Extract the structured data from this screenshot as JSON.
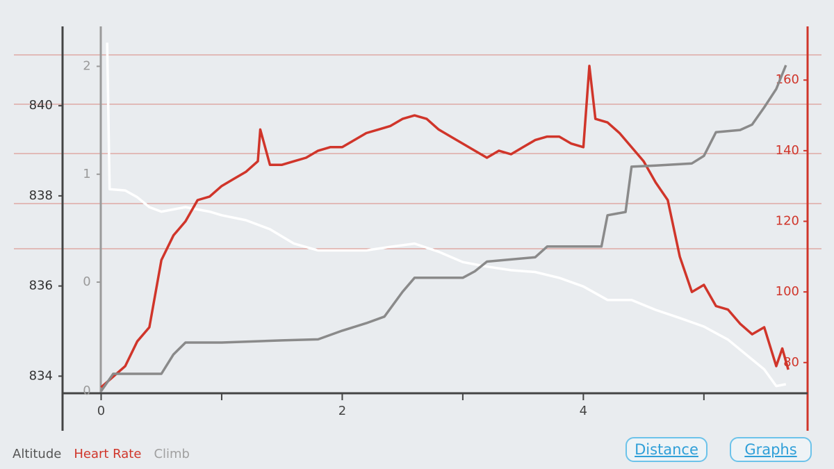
{
  "chart_data": {
    "type": "line",
    "xlim": [
      -0.32,
      5.86
    ],
    "xticks": [
      0,
      2,
      4
    ],
    "x_minor_ticks": [
      1,
      3,
      5
    ],
    "ylim": [
      833.62,
      841.76
    ],
    "yticks": [
      834,
      836,
      838,
      840
    ],
    "y2lim": [
      71.3,
      175.2
    ],
    "y2ticks": [
      80,
      100,
      120,
      140,
      160
    ],
    "y3lim": [
      -1.03,
      2.37
    ],
    "y3ticks": [
      0,
      1,
      2
    ],
    "y3_origin_label": "0",
    "series": [
      {
        "name": "Altitude",
        "color": "#ffffff",
        "legend_color": "#555555",
        "axis": "y",
        "x": [
          0.05,
          0.07,
          0.2,
          0.3,
          0.4,
          0.5,
          0.7,
          0.9,
          1.0,
          1.2,
          1.4,
          1.6,
          1.8,
          2.0,
          2.2,
          2.4,
          2.6,
          2.8,
          3.0,
          3.2,
          3.4,
          3.6,
          3.8,
          4.0,
          4.2,
          4.4,
          4.6,
          4.8,
          5.0,
          5.2,
          5.4,
          5.5,
          5.6,
          5.68
        ],
        "values": [
          841.4,
          838.15,
          838.12,
          837.97,
          837.75,
          837.65,
          837.75,
          837.65,
          837.57,
          837.46,
          837.26,
          836.94,
          836.79,
          836.79,
          836.79,
          836.87,
          836.94,
          836.76,
          836.53,
          836.43,
          836.35,
          836.31,
          836.18,
          835.99,
          835.69,
          835.69,
          835.47,
          835.29,
          835.1,
          834.81,
          834.37,
          834.15,
          833.78,
          833.82
        ]
      },
      {
        "name": "Heart Rate",
        "color": "#d0352a",
        "legend_color": "#d0352a",
        "axis": "y2",
        "x": [
          0,
          0.1,
          0.2,
          0.3,
          0.4,
          0.5,
          0.6,
          0.7,
          0.8,
          0.9,
          1.0,
          1.1,
          1.2,
          1.3,
          1.32,
          1.4,
          1.5,
          1.6,
          1.7,
          1.8,
          1.9,
          2.0,
          2.1,
          2.2,
          2.3,
          2.4,
          2.5,
          2.6,
          2.7,
          2.8,
          2.9,
          3.0,
          3.1,
          3.2,
          3.3,
          3.4,
          3.5,
          3.6,
          3.7,
          3.8,
          3.9,
          4.0,
          4.05,
          4.1,
          4.2,
          4.3,
          4.4,
          4.5,
          4.6,
          4.7,
          4.8,
          4.9,
          5.0,
          5.1,
          5.2,
          5.3,
          5.4,
          5.5,
          5.6,
          5.65,
          5.7
        ],
        "values": [
          73,
          76,
          79,
          86,
          90,
          109,
          116,
          120,
          126,
          127,
          130,
          132,
          134,
          137,
          146,
          136,
          136,
          137,
          138,
          140,
          141,
          141,
          143,
          145,
          146,
          147,
          149,
          150,
          149,
          146,
          144,
          142,
          140,
          138,
          140,
          139,
          141,
          143,
          144,
          144,
          142,
          141,
          164,
          149,
          148,
          145,
          141,
          137,
          131,
          126,
          110,
          100,
          102,
          96,
          95,
          91,
          88,
          90,
          79,
          84,
          78
        ]
      },
      {
        "name": "Climb",
        "color": "#8a8a8a",
        "legend_color": "#a0a0a0",
        "axis": "y3",
        "x": [
          0,
          0.1,
          0.5,
          0.6,
          0.7,
          1.0,
          1.5,
          1.8,
          2.0,
          2.2,
          2.35,
          2.5,
          2.6,
          3.0,
          3.1,
          3.2,
          3.6,
          3.7,
          4.0,
          4.15,
          4.2,
          4.35,
          4.4,
          4.6,
          4.9,
          5.0,
          5.1,
          5.3,
          5.4,
          5.5,
          5.6,
          5.68
        ],
        "values": [
          -1.01,
          -0.85,
          -0.85,
          -0.67,
          -0.56,
          -0.56,
          -0.54,
          -0.53,
          -0.45,
          -0.38,
          -0.32,
          -0.09,
          0.04,
          0.04,
          0.1,
          0.19,
          0.23,
          0.33,
          0.33,
          0.33,
          0.62,
          0.65,
          1.07,
          1.08,
          1.1,
          1.17,
          1.39,
          1.41,
          1.46,
          1.62,
          1.79,
          2.01
        ]
      }
    ]
  },
  "buttons": [
    "Distance",
    "Graphs"
  ]
}
